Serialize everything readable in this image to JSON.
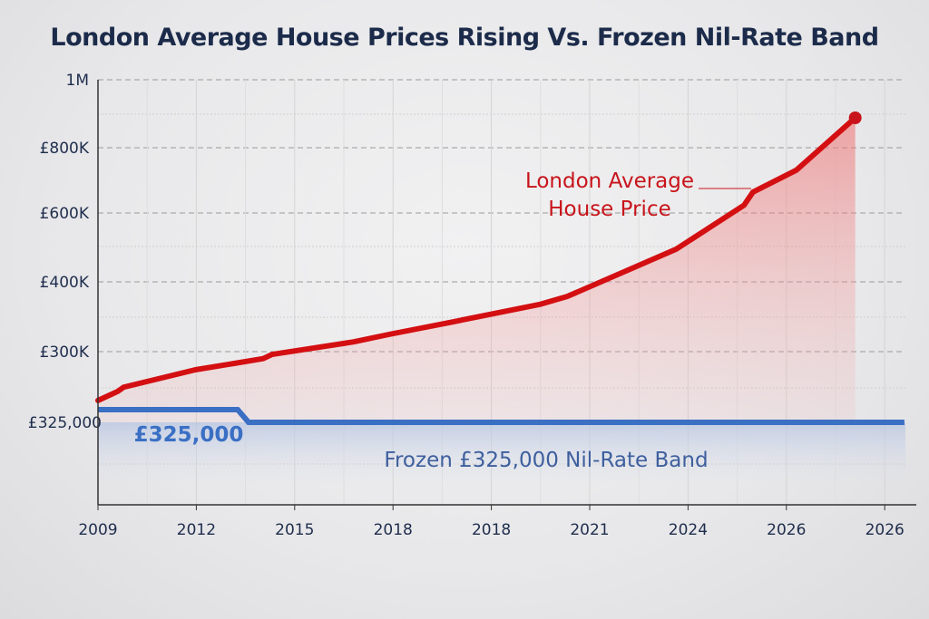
{
  "chart_data": {
    "type": "line",
    "title": "London Average House Prices Rising Vs. Frozen Nil-Rate Band",
    "xlabel": "",
    "ylabel": "",
    "x_tick_labels": [
      "2009",
      "2012",
      "2015",
      "2018",
      "2018",
      "2021",
      "2024",
      "2026",
      "2026"
    ],
    "y_tick_labels": [
      "£325,000",
      "£300K",
      "£400K",
      "£600K",
      "£800K",
      "1M"
    ],
    "grid": true,
    "series": [
      {
        "name": "London Average House Price",
        "color": "#d40f12",
        "x_tick_index": [
          0,
          0.2,
          0.26,
          0.99,
          1.68,
          1.77,
          2.6,
          2.97,
          3.62,
          4.5,
          4.77,
          5.88,
          6.57,
          6.66,
          7.1,
          7.7
        ],
        "values": [
          230000,
          243000,
          249000,
          274000,
          290000,
          296000,
          314000,
          325000,
          343000,
          368000,
          379000,
          495000,
          624000,
          664000,
          731000,
          888000
        ]
      },
      {
        "name": "Frozen £325,000 Nil-Rate Band",
        "color": "#3a6fc4",
        "x_tick_index": [
          0,
          8.2
        ],
        "values": [
          325000,
          325000
        ]
      }
    ],
    "annotations": {
      "red_label": "London Average House Price",
      "blue_value_label": "£325,000",
      "blue_label": "Frozen £325,000 Nil-Rate Band"
    }
  }
}
